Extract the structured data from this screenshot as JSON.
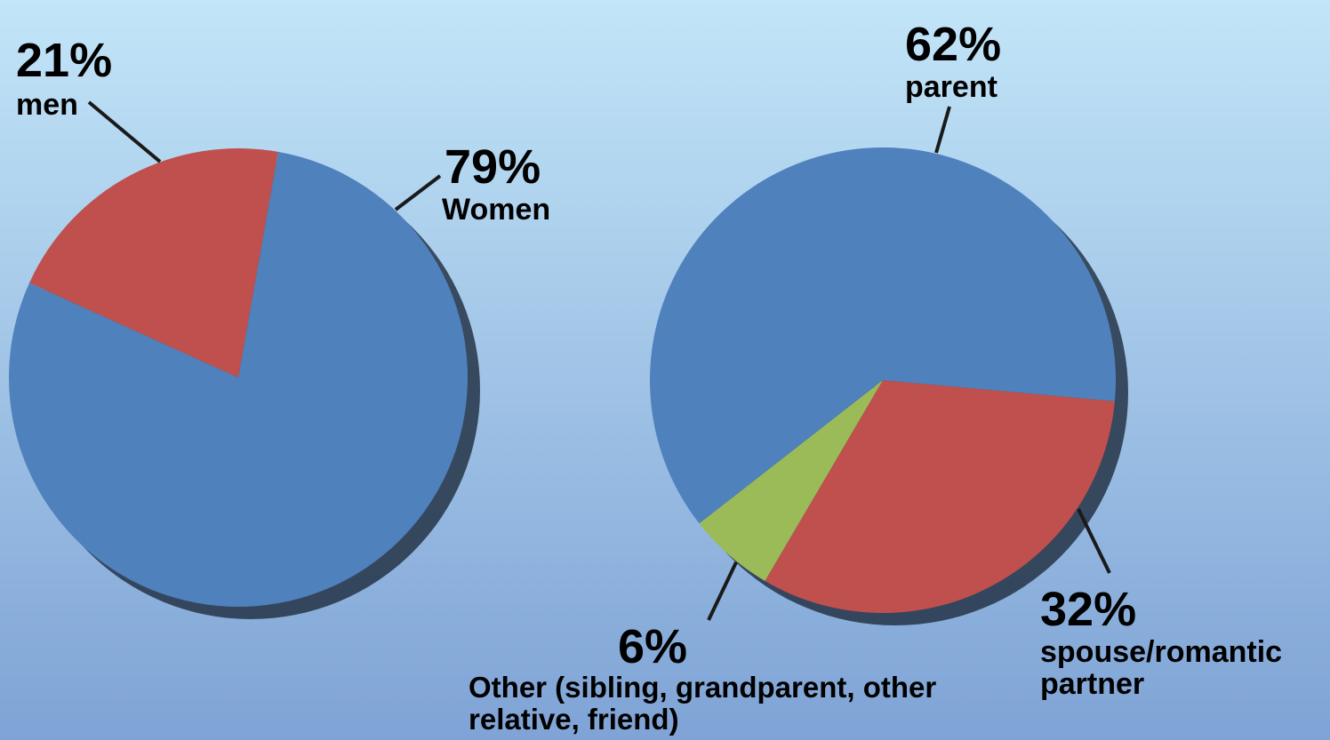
{
  "chart_data": [
    {
      "type": "pie",
      "categories": [
        "Women",
        "men"
      ],
      "values": [
        79,
        21
      ],
      "value_labels": [
        "79%",
        "21%"
      ],
      "colors": [
        "#4f81bd",
        "#c0504d"
      ]
    },
    {
      "type": "pie",
      "categories": [
        "parent",
        "spouse/romantic partner",
        "Other (sibling, grandparent, other relative, friend)"
      ],
      "values": [
        62,
        32,
        6
      ],
      "value_labels": [
        "62%",
        "32%",
        "6%"
      ],
      "colors": [
        "#4f81bd",
        "#c0504d",
        "#9bbb59"
      ]
    }
  ]
}
